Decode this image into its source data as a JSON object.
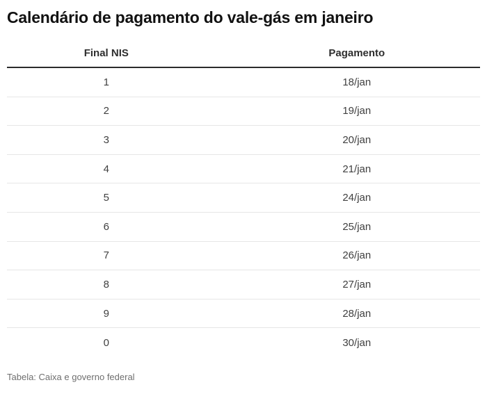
{
  "chart_data": {
    "type": "table",
    "title": "Calendário de pagamento do vale-gás em janeiro",
    "columns": [
      "Final NIS",
      "Pagamento"
    ],
    "rows": [
      [
        "1",
        "18/jan"
      ],
      [
        "2",
        "19/jan"
      ],
      [
        "3",
        "20/jan"
      ],
      [
        "4",
        "21/jan"
      ],
      [
        "5",
        "24/jan"
      ],
      [
        "6",
        "25/jan"
      ],
      [
        "7",
        "26/jan"
      ],
      [
        "8",
        "27/jan"
      ],
      [
        "9",
        "28/jan"
      ],
      [
        "0",
        "30/jan"
      ]
    ],
    "source": "Tabela: Caixa e governo federal",
    "layout_hints": {
      "grid": "horizontal row separators only",
      "header_rule": "thick dark line under column headers",
      "alignment": "both columns center-aligned"
    }
  },
  "colors": {
    "title": "#111111",
    "header_text": "#2e2e2e",
    "row_text": "#404040",
    "thick_rule": "#2b2b2b",
    "separator": "#e6e6e6",
    "source_text": "#6f6f6f",
    "background": "#ffffff"
  }
}
